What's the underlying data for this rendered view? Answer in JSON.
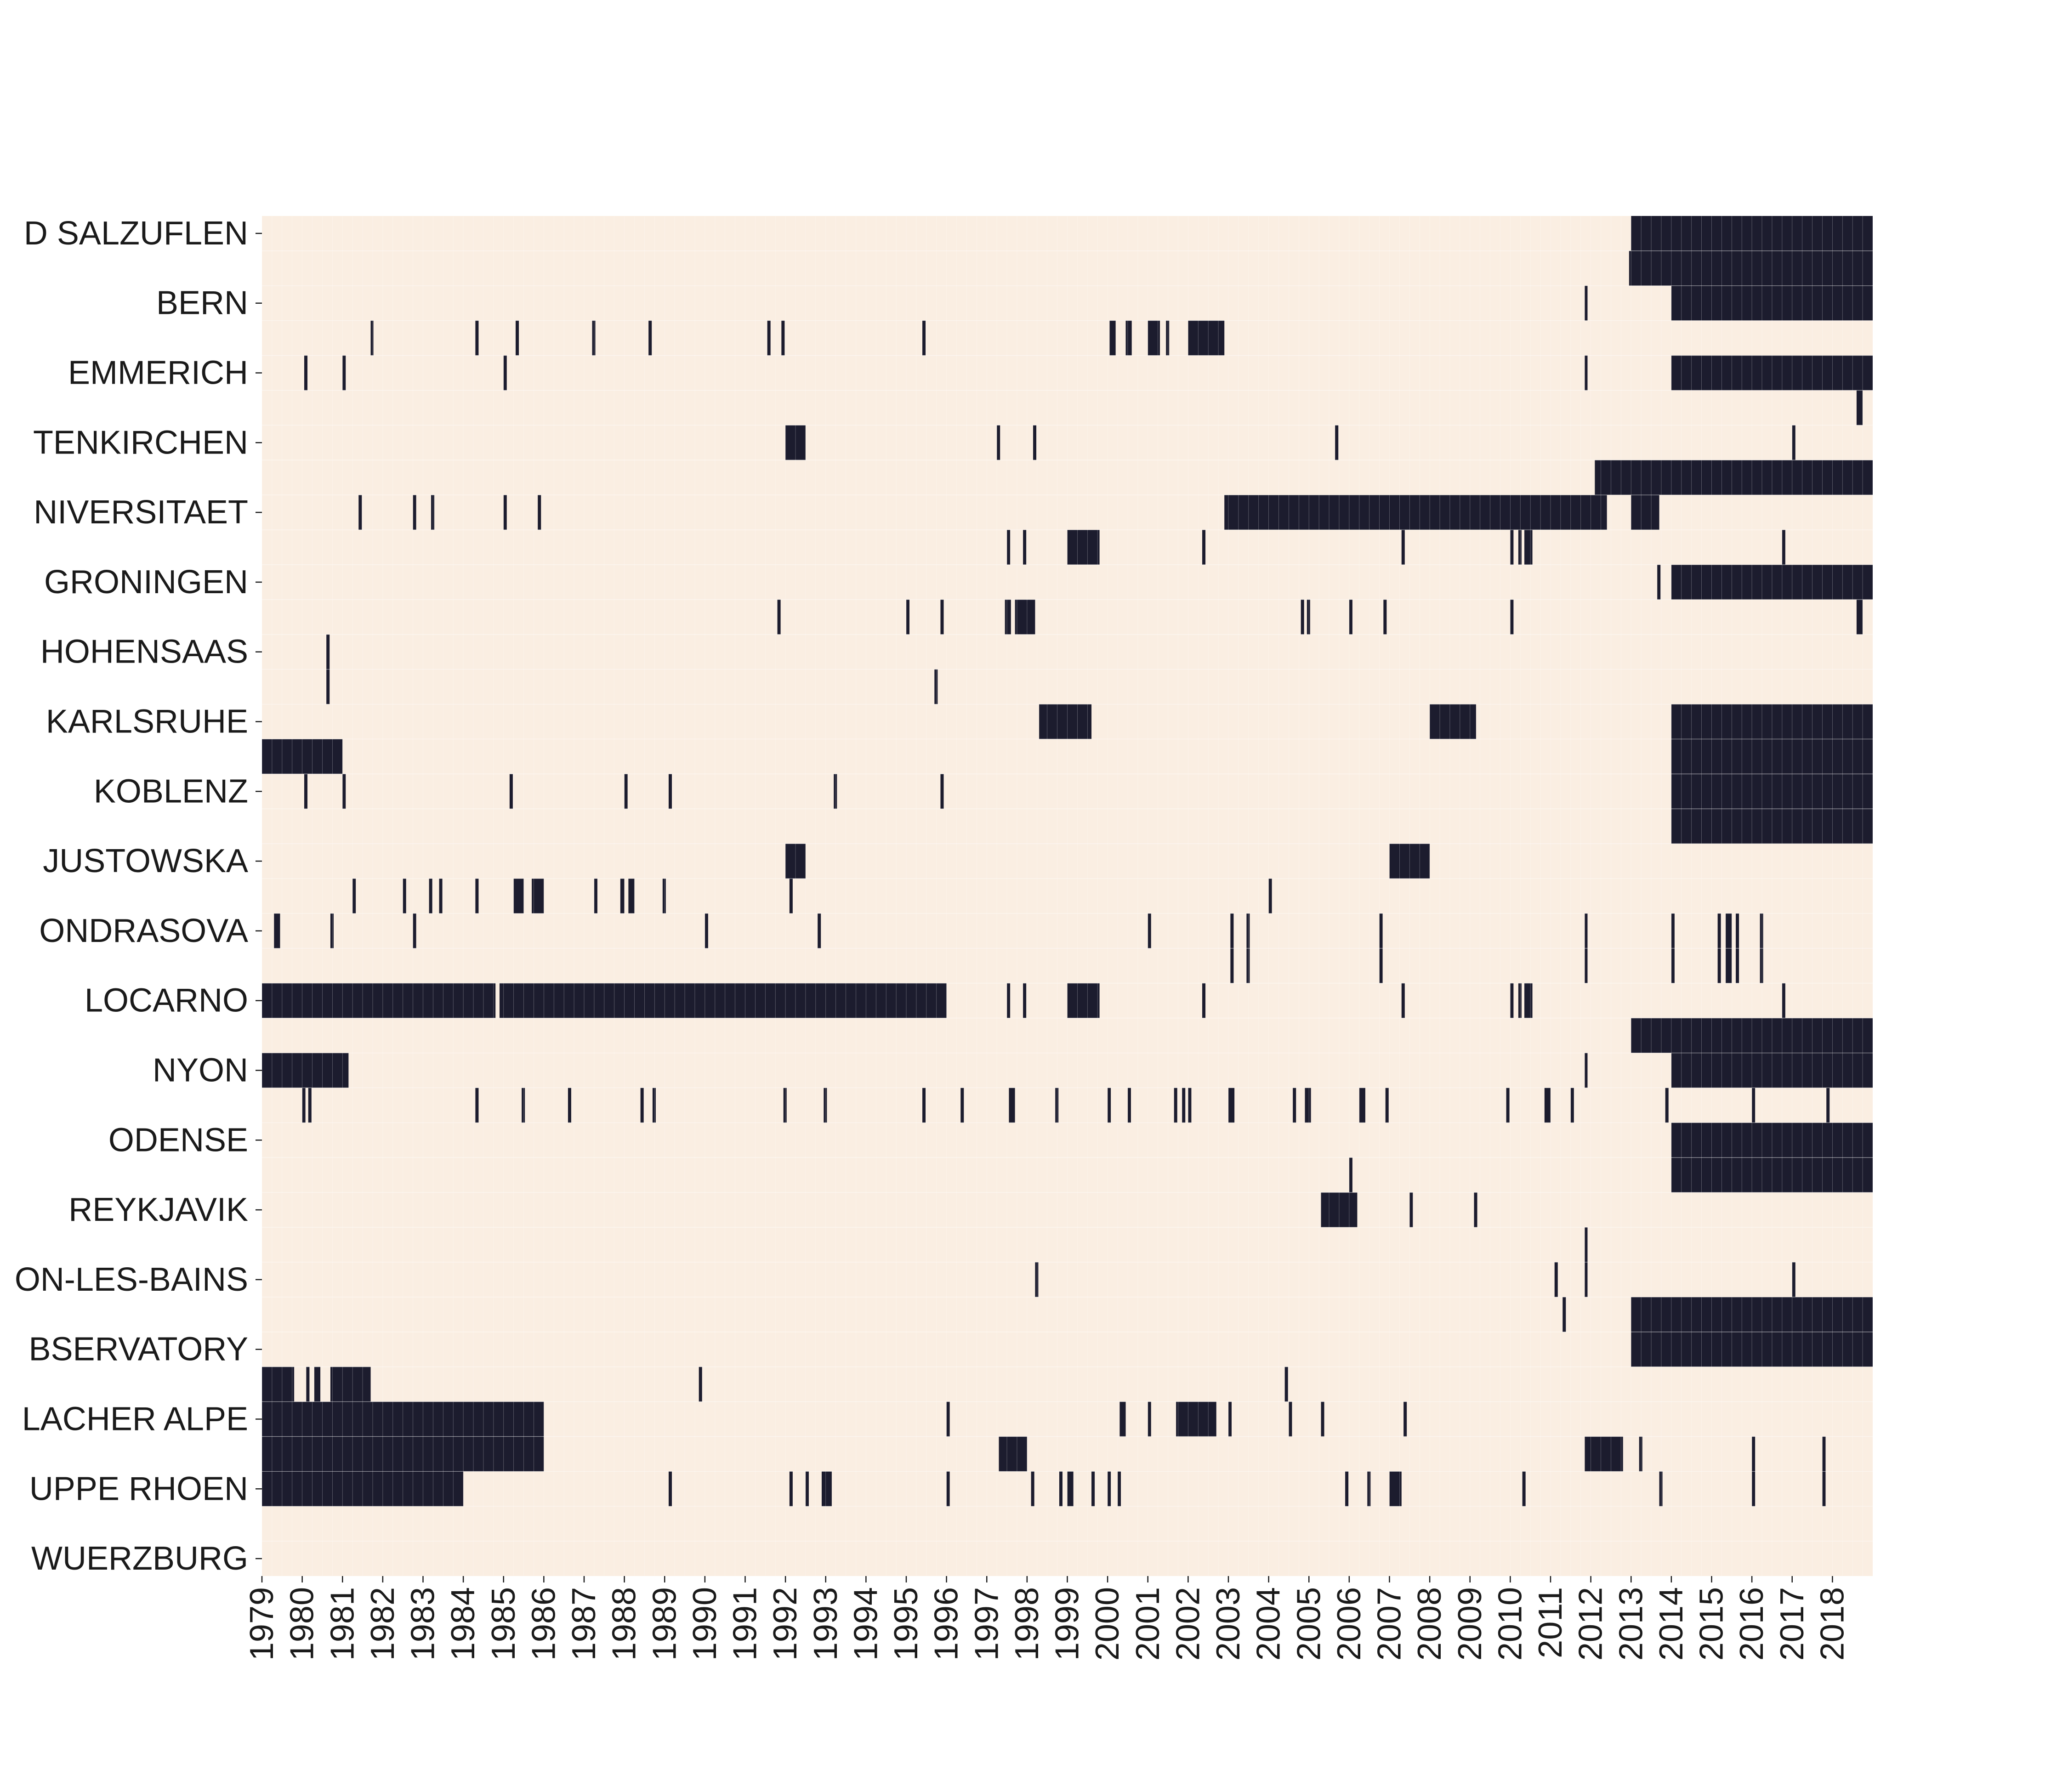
{
  "chart_data": {
    "type": "heatmap",
    "title": "",
    "xlabel": "",
    "ylabel": "",
    "x_range": [
      1979,
      2018.999
    ],
    "colors": {
      "missing": "#faeee2",
      "present": "#1c1c2e",
      "grid": "#ffffff"
    },
    "rows": [
      "D SALZUFLEN",
      "",
      "BERN",
      "",
      "EMMERICH",
      "",
      "TENKIRCHEN",
      "",
      "NIVERSITAET",
      "",
      "GRONINGEN",
      "",
      "HOHENSAAS",
      "",
      "KARLSRUHE",
      "",
      "KOBLENZ",
      "",
      "JUSTOWSKA",
      "",
      "ONDRASOVA",
      "",
      "LOCARNO",
      "",
      "NYON",
      "",
      "ODENSE",
      "",
      "REYKJAVIK",
      "",
      "ON-LES-BAINS",
      "",
      "BSERVATORY",
      "",
      "LACHER ALPE",
      "",
      "UPPE RHOEN",
      "",
      "WUERZBURG"
    ],
    "x_tick_labels": [
      "1979",
      "1980",
      "1981",
      "1982",
      "1983",
      "1984",
      "1985",
      "1986",
      "1987",
      "1988",
      "1989",
      "1990",
      "1991",
      "1992",
      "1993",
      "1994",
      "1995",
      "1996",
      "1997",
      "1998",
      "1999",
      "2000",
      "2001",
      "2002",
      "2003",
      "2004",
      "2005",
      "2006",
      "2007",
      "2008",
      "2009",
      "2010",
      "2011",
      "2012",
      "2013",
      "2014",
      "2015",
      "2016",
      "2017",
      "2018"
    ],
    "segments": [
      [
        [
          2013.0,
          2019.0
        ]
      ],
      [
        [
          2012.95,
          2019.0
        ]
      ],
      [
        [
          2011.85,
          2011.9
        ],
        [
          2014.0,
          2019.0
        ]
      ],
      [
        [
          1981.7,
          1981.75
        ],
        [
          1984.3,
          1984.38
        ],
        [
          1985.3,
          1985.38
        ],
        [
          1987.2,
          1987.28
        ],
        [
          1988.6,
          1988.68
        ],
        [
          1991.55,
          1991.63
        ],
        [
          1991.9,
          1991.98
        ],
        [
          1995.4,
          1995.48
        ],
        [
          2000.05,
          2000.2
        ],
        [
          2000.45,
          2000.6
        ],
        [
          2001.0,
          2001.3
        ],
        [
          2001.45,
          2001.53
        ],
        [
          2002.0,
          2002.9
        ]
      ],
      [
        [
          1980.05,
          1980.13
        ],
        [
          1981.0,
          1981.08
        ],
        [
          1985.0,
          1985.08
        ],
        [
          2011.85,
          2011.9
        ],
        [
          2014.0,
          2019.0
        ]
      ],
      [
        [
          2018.6,
          2018.75
        ]
      ],
      [
        [
          1992.0,
          1992.5
        ],
        [
          1997.25,
          1997.33
        ],
        [
          1998.15,
          1998.23
        ],
        [
          2005.65,
          2005.73
        ],
        [
          2017.0,
          2017.08
        ]
      ],
      [
        [
          2012.1,
          2019.0
        ]
      ],
      [
        [
          1981.4,
          1981.48
        ],
        [
          1982.75,
          1982.83
        ],
        [
          1983.2,
          1983.28
        ],
        [
          1985.0,
          1985.08
        ],
        [
          1985.85,
          1985.93
        ],
        [
          2002.9,
          2012.4
        ],
        [
          2013.0,
          2013.7
        ]
      ],
      [
        [
          1997.5,
          1997.58
        ],
        [
          1997.9,
          1997.98
        ],
        [
          1999.0,
          1999.8
        ],
        [
          2002.35,
          2002.43
        ],
        [
          2007.3,
          2007.38
        ],
        [
          2010.0,
          2010.08
        ],
        [
          2010.2,
          2010.28
        ],
        [
          2010.35,
          2010.55
        ],
        [
          2016.75,
          2016.83
        ]
      ],
      [
        [
          2013.65,
          2013.73
        ],
        [
          2014.0,
          2019.0
        ]
      ],
      [
        [
          1991.8,
          1991.88
        ],
        [
          1995.0,
          1995.08
        ],
        [
          1995.85,
          1995.93
        ],
        [
          1997.45,
          1997.6
        ],
        [
          1997.7,
          1998.2
        ],
        [
          2004.8,
          2004.88
        ],
        [
          2004.95,
          2005.03
        ],
        [
          2006.0,
          2006.08
        ],
        [
          2006.85,
          2006.93
        ],
        [
          2010.0,
          2010.08
        ],
        [
          2018.6,
          2018.75
        ]
      ],
      [
        [
          1980.6,
          1980.68
        ]
      ],
      [
        [
          1980.6,
          1980.68
        ],
        [
          1995.7,
          1995.78
        ]
      ],
      [
        [
          1998.3,
          1999.6
        ],
        [
          2008.0,
          2009.15
        ],
        [
          2014.0,
          2019.0
        ]
      ],
      [
        [
          1979.0,
          1981.0
        ],
        [
          2014.0,
          2019.0
        ]
      ],
      [
        [
          1980.05,
          1980.13
        ],
        [
          1981.0,
          1981.08
        ],
        [
          1985.15,
          1985.23
        ],
        [
          1988.0,
          1988.08
        ],
        [
          1989.1,
          1989.18
        ],
        [
          1993.2,
          1993.28
        ],
        [
          1995.85,
          1995.93
        ],
        [
          2014.0,
          2019.0
        ]
      ],
      [
        [
          2014.0,
          2019.0
        ]
      ],
      [
        [
          1992.0,
          1992.5
        ],
        [
          2007.0,
          2008.0
        ]
      ],
      [
        [
          1981.25,
          1981.33
        ],
        [
          1982.5,
          1982.58
        ],
        [
          1983.15,
          1983.23
        ],
        [
          1983.4,
          1983.48
        ],
        [
          1984.3,
          1984.38
        ],
        [
          1985.25,
          1985.5
        ],
        [
          1985.7,
          1986.0
        ],
        [
          1987.25,
          1987.33
        ],
        [
          1987.9,
          1988.0
        ],
        [
          1988.1,
          1988.25
        ],
        [
          1988.95,
          1989.03
        ],
        [
          1992.1,
          1992.18
        ],
        [
          2004.0,
          2004.08
        ]
      ],
      [
        [
          1979.3,
          1979.45
        ],
        [
          1980.7,
          1980.78
        ],
        [
          1982.75,
          1982.83
        ],
        [
          1990.0,
          1990.08
        ],
        [
          1992.8,
          1992.88
        ],
        [
          2001.0,
          2001.08
        ],
        [
          2003.05,
          2003.13
        ],
        [
          2003.45,
          2003.53
        ],
        [
          2006.75,
          2006.83
        ],
        [
          2011.85,
          2011.9
        ],
        [
          2014.0,
          2014.08
        ],
        [
          2015.15,
          2015.23
        ],
        [
          2015.35,
          2015.5
        ],
        [
          2015.6,
          2015.68
        ],
        [
          2016.2,
          2016.28
        ]
      ],
      [
        [
          2003.05,
          2003.13
        ],
        [
          2003.45,
          2003.53
        ],
        [
          2006.75,
          2006.83
        ],
        [
          2011.85,
          2011.9
        ],
        [
          2014.0,
          2014.08
        ],
        [
          2015.15,
          2015.23
        ],
        [
          2015.35,
          2015.5
        ],
        [
          2015.6,
          2015.68
        ],
        [
          2016.2,
          2016.28
        ]
      ],
      [
        [
          1979.0,
          1984.8
        ],
        [
          1984.9,
          1996.0
        ],
        [
          1997.5,
          1997.58
        ],
        [
          1997.9,
          1997.98
        ],
        [
          1999.0,
          1999.8
        ],
        [
          2002.35,
          2002.43
        ],
        [
          2007.3,
          2007.38
        ],
        [
          2010.0,
          2010.08
        ],
        [
          2010.2,
          2010.28
        ],
        [
          2010.35,
          2010.55
        ],
        [
          2016.75,
          2016.83
        ]
      ],
      [
        [
          2013.0,
          2019.0
        ]
      ],
      [
        [
          1979.0,
          1981.15
        ],
        [
          2011.85,
          2011.9
        ],
        [
          2014.0,
          2019.0
        ]
      ],
      [
        [
          1980.0,
          1980.08
        ],
        [
          1980.15,
          1980.23
        ],
        [
          1984.3,
          1984.38
        ],
        [
          1985.45,
          1985.53
        ],
        [
          1986.6,
          1986.68
        ],
        [
          1988.4,
          1988.48
        ],
        [
          1988.7,
          1988.78
        ],
        [
          1991.95,
          1992.03
        ],
        [
          1992.95,
          1993.03
        ],
        [
          1995.4,
          1995.48
        ],
        [
          1996.35,
          1996.43
        ],
        [
          1997.55,
          1997.7
        ],
        [
          1998.7,
          1998.78
        ],
        [
          2000.0,
          2000.08
        ],
        [
          2000.5,
          2000.58
        ],
        [
          2001.65,
          2001.73
        ],
        [
          2001.85,
          2001.93
        ],
        [
          2002.0,
          2002.08
        ],
        [
          2003.0,
          2003.15
        ],
        [
          2004.6,
          2004.68
        ],
        [
          2004.9,
          2005.05
        ],
        [
          2006.25,
          2006.4
        ],
        [
          2006.9,
          2006.98
        ],
        [
          2009.9,
          2009.98
        ],
        [
          2010.85,
          2011.0
        ],
        [
          2011.5,
          2011.58
        ],
        [
          2013.85,
          2013.93
        ],
        [
          2016.0,
          2016.08
        ],
        [
          2017.85,
          2017.93
        ]
      ],
      [
        [
          2014.0,
          2019.0
        ]
      ],
      [
        [
          2006.0,
          2006.08
        ],
        [
          2014.0,
          2019.0
        ]
      ],
      [
        [
          2005.3,
          2006.2
        ],
        [
          2007.5,
          2007.58
        ],
        [
          2009.1,
          2009.18
        ]
      ],
      [
        [
          2011.85,
          2011.9
        ]
      ],
      [
        [
          1998.2,
          1998.28
        ],
        [
          2011.1,
          2011.18
        ],
        [
          2011.85,
          2011.9
        ],
        [
          2017.0,
          2017.08
        ]
      ],
      [
        [
          2011.3,
          2011.38
        ],
        [
          2013.0,
          2019.0
        ]
      ],
      [
        [
          2013.0,
          2019.0
        ]
      ],
      [
        [
          1979.0,
          1979.8
        ],
        [
          1980.1,
          1980.18
        ],
        [
          1980.3,
          1980.45
        ],
        [
          1980.7,
          1981.7
        ],
        [
          1989.85,
          1989.93
        ],
        [
          2004.4,
          2004.48
        ]
      ],
      [
        [
          1979.0,
          1986.0
        ],
        [
          1996.0,
          1996.08
        ],
        [
          2000.3,
          2000.45
        ],
        [
          2001.0,
          2001.08
        ],
        [
          2001.7,
          2002.7
        ],
        [
          2003.0,
          2003.08
        ],
        [
          2004.5,
          2004.58
        ],
        [
          2005.3,
          2005.38
        ],
        [
          2007.35,
          2007.43
        ]
      ],
      [
        [
          1979.0,
          1986.0
        ],
        [
          1997.3,
          1998.0
        ],
        [
          2011.85,
          2012.8
        ],
        [
          2013.2,
          2013.28
        ],
        [
          2016.0,
          2016.08
        ],
        [
          2017.75,
          2017.83
        ]
      ],
      [
        [
          1979.0,
          1984.0
        ],
        [
          1989.1,
          1989.18
        ],
        [
          1992.1,
          1992.18
        ],
        [
          1992.5,
          1992.58
        ],
        [
          1992.9,
          1993.15
        ],
        [
          1996.0,
          1996.08
        ],
        [
          1998.1,
          1998.18
        ],
        [
          1998.8,
          1998.88
        ],
        [
          1999.0,
          1999.15
        ],
        [
          1999.6,
          1999.68
        ],
        [
          2000.0,
          2000.08
        ],
        [
          2000.25,
          2000.33
        ],
        [
          2005.9,
          2005.98
        ],
        [
          2006.45,
          2006.53
        ],
        [
          2007.0,
          2007.3
        ],
        [
          2010.3,
          2010.38
        ],
        [
          2013.7,
          2013.78
        ],
        [
          2016.0,
          2016.08
        ],
        [
          2017.75,
          2017.83
        ]
      ]
    ]
  }
}
